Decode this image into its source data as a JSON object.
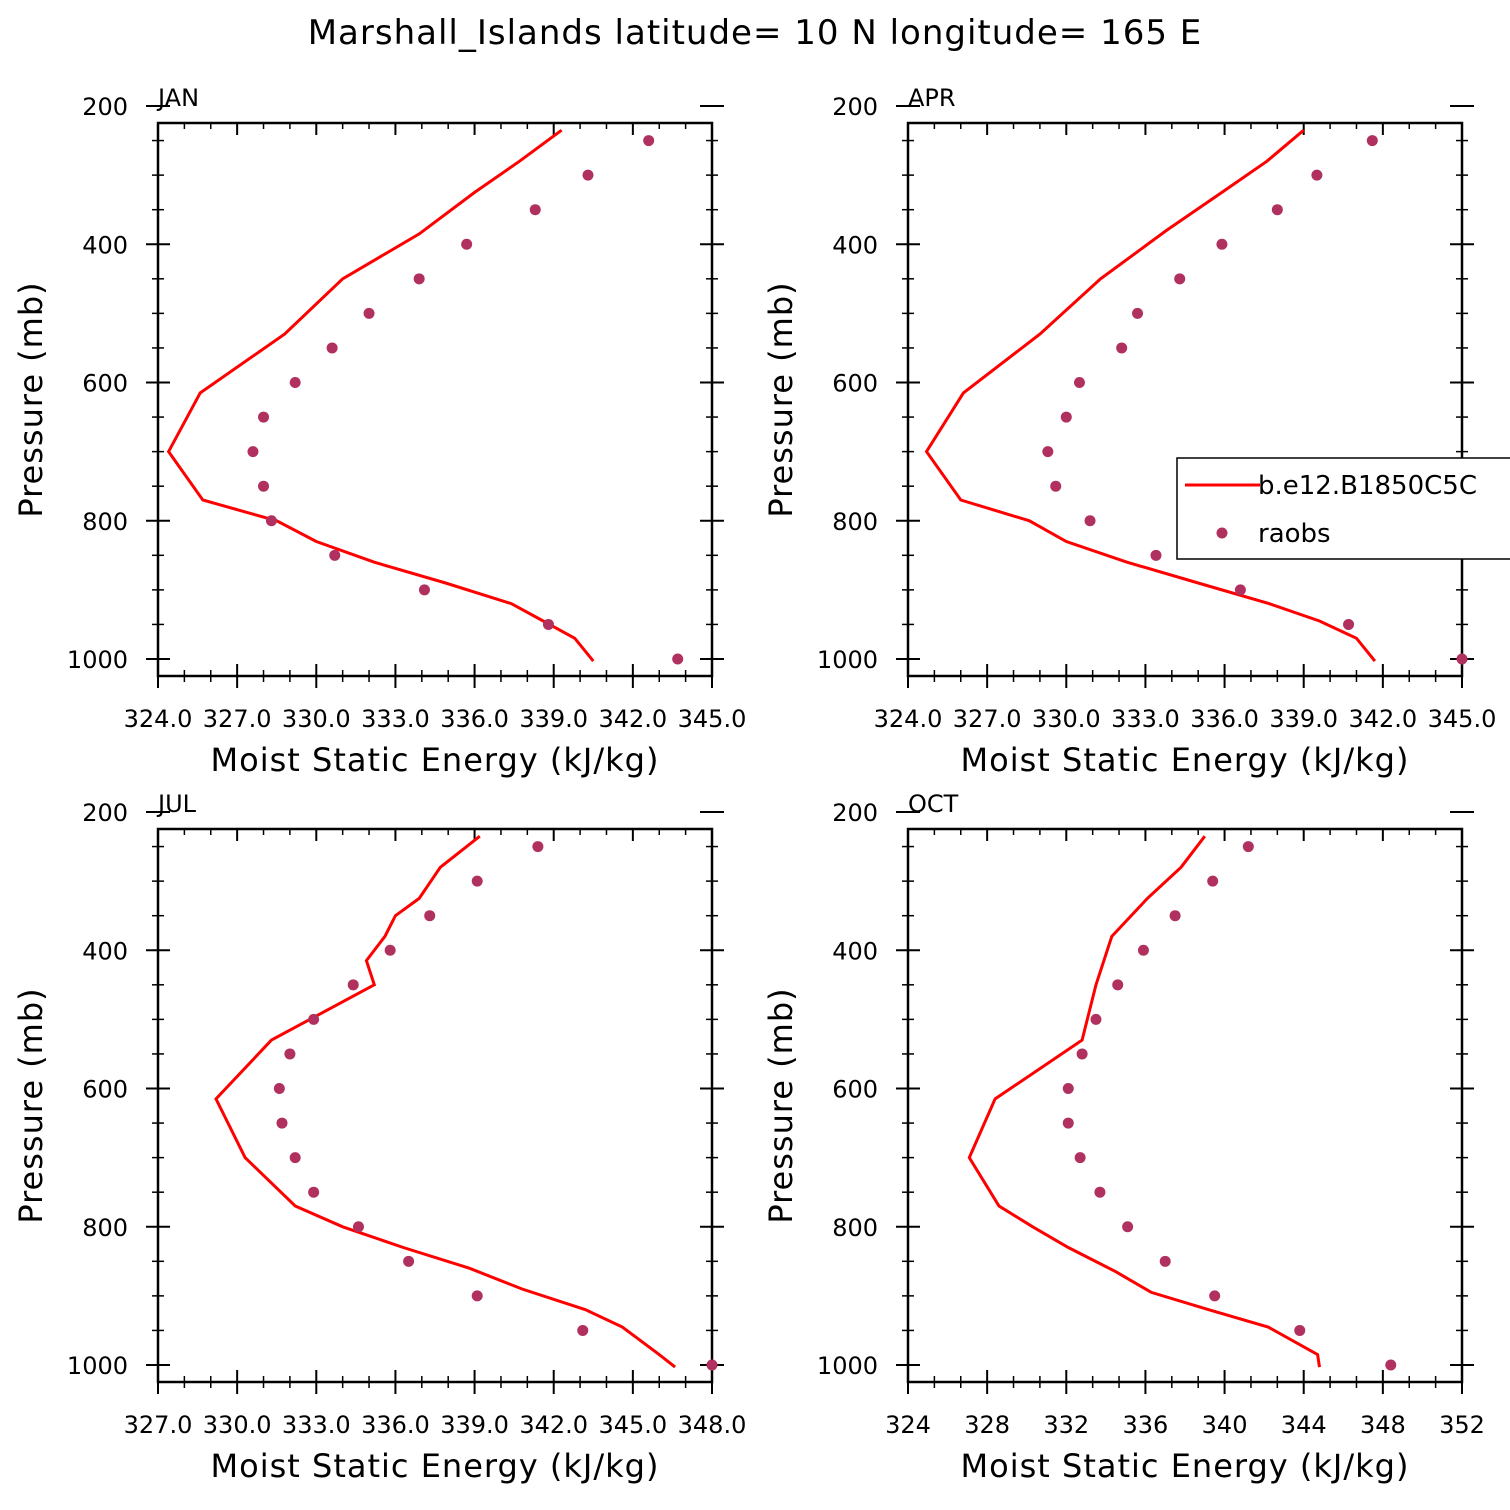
{
  "title": "Marshall_Islands  latitude= 10 N longitude= 165 E",
  "legend": {
    "model": "b.e12.B1850C5C",
    "obs": "raobs"
  },
  "colors": {
    "model": "#ff0000",
    "obs": "#b03060"
  },
  "chart_data": [
    {
      "type": "line",
      "panel": "JAN",
      "xlabel": "Moist Static Energy (kJ/kg)",
      "ylabel": "Pressure (mb)",
      "xlim": [
        324.0,
        345.0
      ],
      "xticks": [
        324.0,
        327.0,
        330.0,
        333.0,
        336.0,
        339.0,
        342.0,
        345.0
      ],
      "xtick_labels": [
        "324.0",
        "327.0",
        "330.0",
        "333.0",
        "336.0",
        "339.0",
        "342.0",
        "345.0"
      ],
      "ylim": [
        1000,
        200
      ],
      "yticks": [
        200,
        400,
        600,
        800,
        1000
      ],
      "series": [
        {
          "name": "b.e12.B1850C5C",
          "kind": "line",
          "x": [
            339.3,
            337.7,
            336.0,
            333.9,
            331.0,
            328.8,
            325.6,
            324.4,
            325.7,
            328.5,
            330.0,
            332.2,
            334.9,
            337.4,
            338.6,
            339.8,
            340.5
          ],
          "y": [
            235,
            280,
            325,
            385,
            450,
            530,
            615,
            700,
            770,
            800,
            830,
            860,
            890,
            920,
            945,
            970,
            1003
          ]
        },
        {
          "name": "raobs",
          "kind": "scatter",
          "x": [
            342.6,
            340.3,
            338.3,
            335.7,
            333.9,
            332.0,
            330.6,
            329.2,
            328.0,
            327.6,
            328.0,
            328.3,
            330.7,
            334.1,
            338.8,
            343.7
          ],
          "y": [
            250,
            300,
            350,
            400,
            450,
            500,
            550,
            600,
            650,
            700,
            750,
            800,
            850,
            900,
            950,
            1000
          ]
        }
      ]
    },
    {
      "type": "line",
      "panel": "APR",
      "xlabel": "Moist Static Energy (kJ/kg)",
      "ylabel": "Pressure (mb)",
      "xlim": [
        324.0,
        345.0
      ],
      "xticks": [
        324.0,
        327.0,
        330.0,
        333.0,
        336.0,
        339.0,
        342.0,
        345.0
      ],
      "xtick_labels": [
        "324.0",
        "327.0",
        "330.0",
        "333.0",
        "336.0",
        "339.0",
        "342.0",
        "345.0"
      ],
      "ylim": [
        1000,
        200
      ],
      "yticks": [
        200,
        400,
        600,
        800,
        1000
      ],
      "series": [
        {
          "name": "b.e12.B1850C5C",
          "kind": "line",
          "x": [
            339.0,
            337.6,
            335.9,
            333.8,
            331.3,
            329.0,
            326.1,
            324.7,
            326.0,
            328.6,
            330.0,
            332.3,
            335.0,
            337.7,
            339.6,
            341.0,
            341.7
          ],
          "y": [
            235,
            280,
            325,
            380,
            450,
            530,
            615,
            700,
            770,
            800,
            830,
            860,
            890,
            920,
            945,
            970,
            1003
          ]
        },
        {
          "name": "raobs",
          "kind": "scatter",
          "x": [
            341.6,
            339.5,
            338.0,
            335.9,
            334.3,
            332.7,
            332.1,
            330.5,
            330.0,
            329.3,
            329.6,
            330.9,
            333.4,
            336.6,
            340.7,
            345.0
          ],
          "y": [
            250,
            300,
            350,
            400,
            450,
            500,
            550,
            600,
            650,
            700,
            750,
            800,
            850,
            900,
            950,
            1000
          ]
        }
      ]
    },
    {
      "type": "line",
      "panel": "JUL",
      "xlabel": "Moist Static Energy (kJ/kg)",
      "ylabel": "Pressure (mb)",
      "xlim": [
        327.0,
        348.0
      ],
      "xticks": [
        327.0,
        330.0,
        333.0,
        336.0,
        339.0,
        342.0,
        345.0,
        348.0
      ],
      "xtick_labels": [
        "327.0",
        "330.0",
        "333.0",
        "336.0",
        "339.0",
        "342.0",
        "345.0",
        "348.0"
      ],
      "ylim": [
        1000,
        200
      ],
      "yticks": [
        200,
        400,
        600,
        800,
        1000
      ],
      "series": [
        {
          "name": "b.e12.B1850C5C",
          "kind": "line",
          "x": [
            339.2,
            337.7,
            336.9,
            336.0,
            335.6,
            334.9,
            335.2,
            331.3,
            329.2,
            330.3,
            332.2,
            334.0,
            336.3,
            338.8,
            340.8,
            343.2,
            344.6,
            346.0,
            346.6
          ],
          "y": [
            235,
            280,
            325,
            350,
            380,
            415,
            450,
            530,
            615,
            700,
            770,
            800,
            830,
            860,
            890,
            920,
            945,
            985,
            1003
          ]
        },
        {
          "name": "raobs",
          "kind": "scatter",
          "x": [
            341.4,
            339.1,
            337.3,
            335.8,
            334.4,
            332.9,
            332.0,
            331.6,
            331.7,
            332.2,
            332.9,
            334.6,
            336.5,
            339.1,
            343.1,
            348.0
          ],
          "y": [
            250,
            300,
            350,
            400,
            450,
            500,
            550,
            600,
            650,
            700,
            750,
            800,
            850,
            900,
            950,
            1000
          ]
        }
      ]
    },
    {
      "type": "line",
      "panel": "OCT",
      "xlabel": "Moist Static Energy (kJ/kg)",
      "ylabel": "Pressure (mb)",
      "xlim": [
        324,
        352
      ],
      "xticks": [
        324,
        328,
        332,
        336,
        340,
        344,
        348,
        352
      ],
      "xtick_labels": [
        "324",
        "328",
        "332",
        "336",
        "340",
        "344",
        "348",
        "352"
      ],
      "ylim": [
        1000,
        200
      ],
      "yticks": [
        200,
        400,
        600,
        800,
        1000
      ],
      "series": [
        {
          "name": "b.e12.B1850C5C",
          "kind": "line",
          "x": [
            339.0,
            337.8,
            336.1,
            334.3,
            333.5,
            332.8,
            328.4,
            327.1,
            328.6,
            330.3,
            332.1,
            334.5,
            336.3,
            339.2,
            342.2,
            344.7,
            344.8
          ],
          "y": [
            235,
            280,
            325,
            380,
            450,
            530,
            615,
            700,
            770,
            800,
            830,
            865,
            895,
            920,
            945,
            985,
            1003
          ]
        },
        {
          "name": "raobs",
          "kind": "scatter",
          "x": [
            341.2,
            339.4,
            337.5,
            335.9,
            334.6,
            333.5,
            332.8,
            332.1,
            332.1,
            332.7,
            333.7,
            335.1,
            337.0,
            339.5,
            343.8,
            348.4
          ],
          "y": [
            250,
            300,
            350,
            400,
            450,
            500,
            550,
            600,
            650,
            700,
            750,
            800,
            850,
            900,
            950,
            1000
          ]
        }
      ]
    }
  ]
}
